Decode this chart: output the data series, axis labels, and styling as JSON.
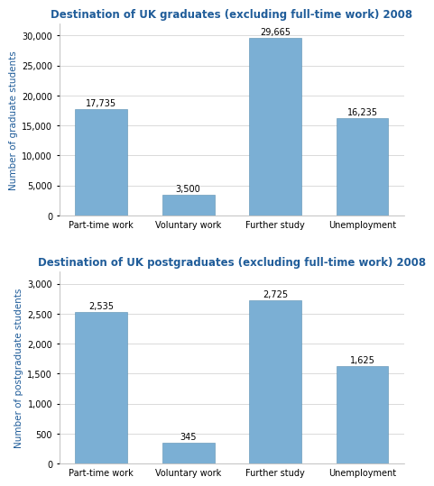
{
  "grad_title": "Destination of UK graduates (excluding full-time work) 2008",
  "postgrad_title": "Destination of UK postgraduates (excluding full-time work) 2008",
  "categories": [
    "Part-time work",
    "Voluntary work",
    "Further study",
    "Unemployment"
  ],
  "grad_values": [
    17735,
    3500,
    29665,
    16235
  ],
  "postgrad_values": [
    2535,
    345,
    2725,
    1625
  ],
  "grad_ylabel": "Number of graduate students",
  "postgrad_ylabel": "Number of postgraduate students",
  "bar_color": "#7BAFD4",
  "bar_edgecolor": "#5A8FB0",
  "grad_ylim": [
    0,
    32000
  ],
  "grad_yticks": [
    0,
    5000,
    10000,
    15000,
    20000,
    25000,
    30000
  ],
  "postgrad_ylim": [
    0,
    3200
  ],
  "postgrad_yticks": [
    0,
    500,
    1000,
    1500,
    2000,
    2500,
    3000
  ],
  "title_color": "#1F5C99",
  "ylabel_color": "#1F5C99",
  "label_fontsize": 7.5,
  "title_fontsize": 8.5,
  "value_label_fontsize": 7,
  "tick_fontsize": 7,
  "background_color": "#ffffff",
  "grid_color": "#cccccc",
  "bar_width": 0.6
}
